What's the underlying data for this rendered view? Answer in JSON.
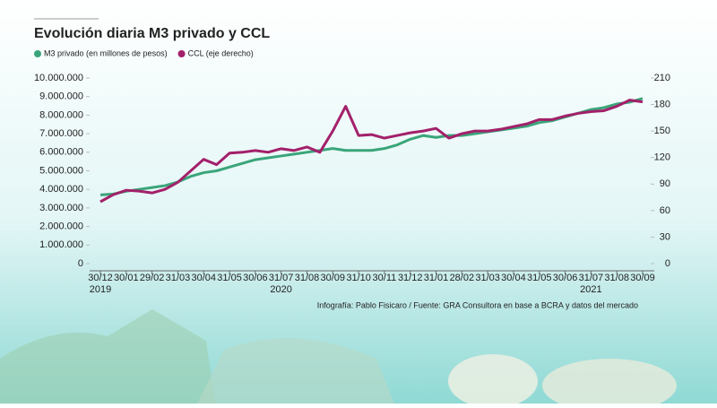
{
  "chart_data": {
    "type": "line",
    "title": "Evolución diaria M3 privado y CCL",
    "source": "Infografía: Pablo Fisicaro / Fuente: GRA Consultora en base a BCRA y datos del mercado",
    "categories": [
      "30/12",
      null,
      "30/01",
      null,
      "29/02",
      null,
      "31/03",
      null,
      "30/04",
      null,
      "31/05",
      null,
      "30/06",
      null,
      "31/07",
      null,
      "31/08",
      null,
      "30/09",
      null,
      "31/10",
      null,
      "30/11",
      null,
      "31/12",
      null,
      "31/01",
      null,
      "28/02",
      null,
      "31/03",
      null,
      "30/04",
      null,
      "31/05",
      null,
      "30/06",
      null,
      "31/07",
      null,
      "31/08",
      null,
      "30/09"
    ],
    "years": [
      "2019",
      null,
      null,
      null,
      null,
      null,
      null,
      null,
      null,
      null,
      null,
      null,
      null,
      null,
      "2020",
      null,
      null,
      null,
      null,
      null,
      null,
      null,
      null,
      null,
      null,
      null,
      null,
      null,
      null,
      null,
      null,
      null,
      null,
      null,
      null,
      null,
      null,
      null,
      "2021",
      null,
      null,
      null,
      null
    ],
    "series": [
      {
        "name": "M3 privado (en millones de pesos)",
        "color": "#3aa57a",
        "values": [
          3700000,
          3750000,
          3900000,
          4000000,
          4100000,
          4200000,
          4400000,
          4700000,
          4900000,
          5000000,
          5200000,
          5400000,
          5600000,
          5700000,
          5800000,
          5900000,
          6000000,
          6100000,
          6200000,
          6100000,
          6100000,
          6100000,
          6200000,
          6400000,
          6700000,
          6900000,
          6800000,
          6900000,
          6900000,
          7000000,
          7100000,
          7200000,
          7300000,
          7400000,
          7600000,
          7700000,
          7900000,
          8100000,
          8300000,
          8400000,
          8600000,
          8700000,
          8900000
        ]
      },
      {
        "name": "CCL (eje derecho)",
        "color": "#a3206a",
        "axis": "y2",
        "values": [
          70,
          78,
          83,
          82,
          80,
          84,
          92,
          105,
          118,
          112,
          125,
          126,
          128,
          126,
          130,
          128,
          132,
          126,
          150,
          178,
          145,
          146,
          142,
          145,
          148,
          150,
          153,
          142,
          147,
          150,
          150,
          152,
          155,
          158,
          163,
          163,
          167,
          170,
          172,
          173,
          178,
          185,
          183
        ]
      }
    ],
    "ylim": [
      0,
      10000000
    ],
    "yticks": [
      0,
      {
        "value": 1000000,
        "label": "1.000.000"
      },
      {
        "value": 2000000,
        "label": "2.000.000"
      },
      {
        "value": 3000000,
        "label": "3.000.000"
      },
      {
        "value": 4000000,
        "label": "4.000.000"
      },
      {
        "value": 5000000,
        "label": "5.000.000"
      },
      {
        "value": 6000000,
        "label": "6.000.000"
      },
      {
        "value": 7000000,
        "label": "7.000.000"
      },
      {
        "value": 8000000,
        "label": "8.000.000"
      },
      {
        "value": 9000000,
        "label": "9.000.000"
      },
      {
        "value": 10000000,
        "label": "10.000.000"
      }
    ],
    "y2lim": [
      0,
      210
    ],
    "y2ticks": [
      0,
      30,
      60,
      90,
      120,
      150,
      180,
      210
    ]
  }
}
